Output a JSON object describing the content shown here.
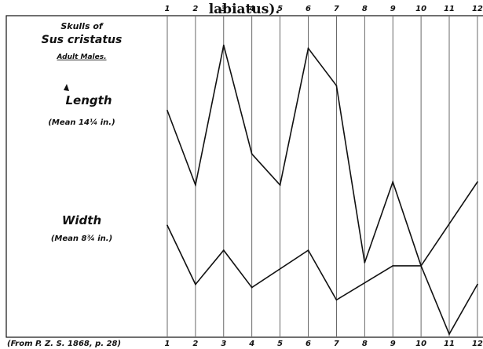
{
  "page": {
    "top_heading": "labiatus).",
    "citation": "(From P. Z. S. 1868, p. 28)"
  },
  "chart_data": {
    "type": "line",
    "title_line1": "Skulls of",
    "title_line2": "Sus cristatus",
    "title_line3": "Adult Males.",
    "x": [
      1,
      2,
      3,
      4,
      5,
      6,
      7,
      8,
      9,
      10,
      11,
      12
    ],
    "x_labels": [
      "1",
      "2",
      "3",
      "4",
      "5",
      "6",
      "7",
      "8",
      "9",
      "10",
      "11",
      "12"
    ],
    "series": [
      {
        "name": "Length",
        "note": "(Mean 14¼ in.)",
        "values": [
          7.2,
          4.8,
          9.3,
          5.8,
          4.8,
          9.2,
          8.0,
          2.3,
          4.9,
          2.2,
          null,
          4.9
        ]
      },
      {
        "name": "Width",
        "note": "(Mean 8¾ in.)",
        "values": [
          3.5,
          1.6,
          2.7,
          1.5,
          null,
          2.7,
          1.1,
          null,
          2.2,
          2.2,
          0.0,
          1.6
        ]
      }
    ],
    "ylim": [
      0,
      10
    ],
    "grid": "vertical lines at each skull number",
    "line_color": "#111111"
  }
}
